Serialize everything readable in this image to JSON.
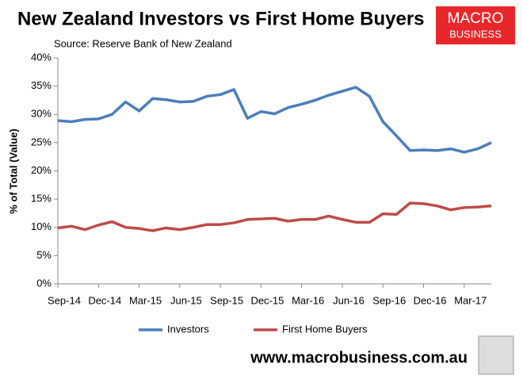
{
  "chart_data": {
    "type": "line",
    "title": "New Zealand Investors vs First Home Buyers",
    "subtitle": "Source: Reserve Bank of New Zealand",
    "y_label": "% of Total (Value)",
    "logo": [
      "MACRO",
      "BUSINESS"
    ],
    "footer": "www.macrobusiness.com.au",
    "categories": [
      "Sep-14",
      null,
      null,
      "Dec-14",
      null,
      null,
      "Mar-15",
      null,
      null,
      "Jun-15",
      null,
      null,
      "Sep-15",
      null,
      null,
      "Dec-15",
      null,
      null,
      "Mar-16",
      null,
      null,
      "Jun-16",
      null,
      null,
      "Sep-16",
      null,
      null,
      "Dec-16",
      null,
      null,
      "Mar-17",
      null,
      null
    ],
    "series": [
      {
        "name": "Investors",
        "color": "#4a7ebb",
        "values": [
          28.9,
          28.7,
          29.1,
          29.2,
          30.0,
          32.2,
          30.6,
          32.8,
          32.6,
          32.2,
          32.3,
          33.2,
          33.5,
          34.4,
          29.3,
          30.5,
          30.1,
          31.2,
          31.8,
          32.5,
          33.4,
          34.1,
          34.8,
          33.2,
          28.7,
          26.2,
          23.6,
          23.7,
          23.6,
          23.9,
          23.3,
          23.9,
          25.0
        ]
      },
      {
        "name": "First Home Buyers",
        "color": "#be4b48",
        "values": [
          9.9,
          10.2,
          9.6,
          10.4,
          11.0,
          10.0,
          9.8,
          9.4,
          9.9,
          9.6,
          10.0,
          10.5,
          10.5,
          10.8,
          11.4,
          11.5,
          11.6,
          11.1,
          11.4,
          11.4,
          12.0,
          11.4,
          10.9,
          10.9,
          12.4,
          12.3,
          14.3,
          14.2,
          13.8,
          13.1,
          13.5,
          13.6,
          13.8
        ]
      }
    ],
    "ylim": [
      0,
      40
    ],
    "yticks": [
      {
        "value": 0,
        "label": "0%"
      },
      {
        "value": 5,
        "label": "5%"
      },
      {
        "value": 10,
        "label": "10%"
      },
      {
        "value": 15,
        "label": "15%"
      },
      {
        "value": 20,
        "label": "20%"
      },
      {
        "value": 25,
        "label": "25%"
      },
      {
        "value": 30,
        "label": "30%"
      },
      {
        "value": 35,
        "label": "35%"
      },
      {
        "value": 40,
        "label": "40%"
      }
    ],
    "grid": false,
    "legend": "bottom"
  }
}
